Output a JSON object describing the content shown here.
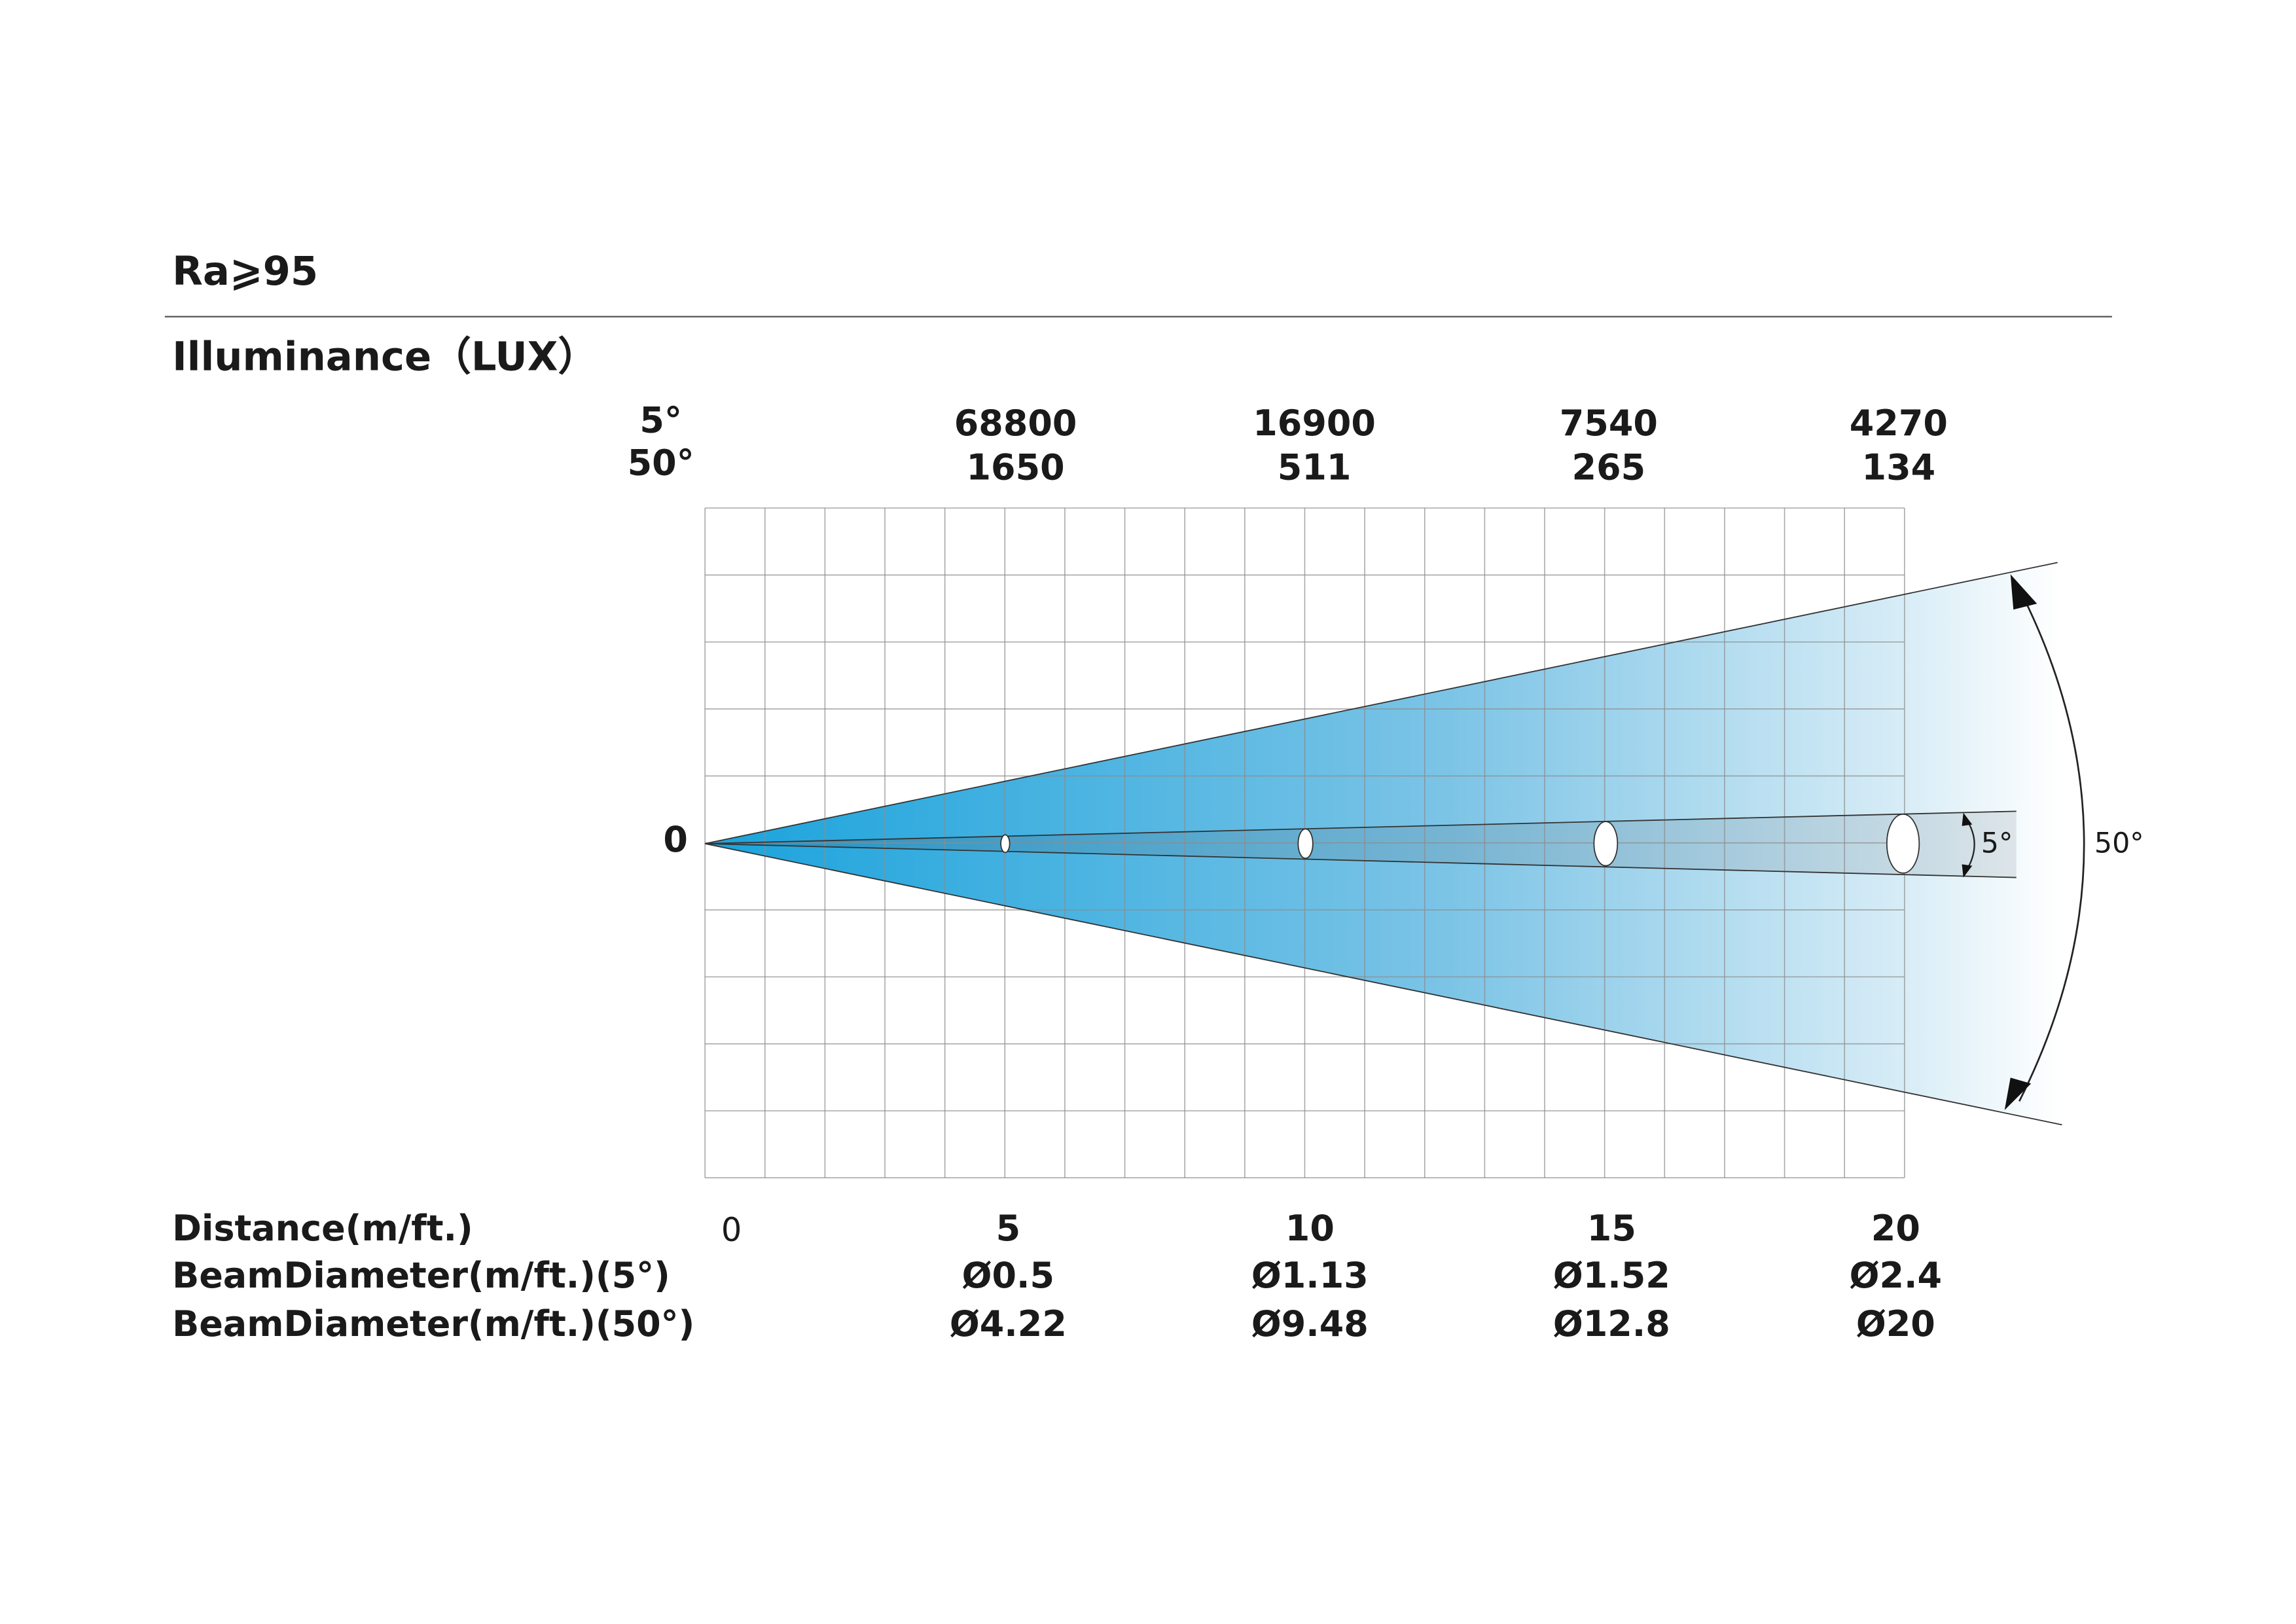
{
  "header": {
    "title": "Ra⩾95",
    "subtitle": "Illuminance（LUX）"
  },
  "angles": {
    "narrow": "5°",
    "wide": "50°"
  },
  "origin_label": "0",
  "illuminance": [
    {
      "narrow": "68800",
      "wide": "1650"
    },
    {
      "narrow": "16900",
      "wide": "511"
    },
    {
      "narrow": "7540",
      "wide": "265"
    },
    {
      "narrow": "4270",
      "wide": "134"
    }
  ],
  "beam_labels": {
    "narrow": "5°",
    "wide": "50°"
  },
  "rows": [
    {
      "label": "Distance(m/ft.)",
      "start": "0",
      "values": [
        "5",
        "10",
        "15",
        "20"
      ]
    },
    {
      "label": "BeamDiameter(m/ft.)(5°)",
      "values": [
        "Ø0.5",
        "Ø1.13",
        "Ø1.52",
        "Ø2.4"
      ]
    },
    {
      "label": "BeamDiameter(m/ft.)(50°)",
      "values": [
        "Ø4.22",
        "Ø9.48",
        "Ø12.8",
        "Ø20"
      ]
    }
  ]
}
